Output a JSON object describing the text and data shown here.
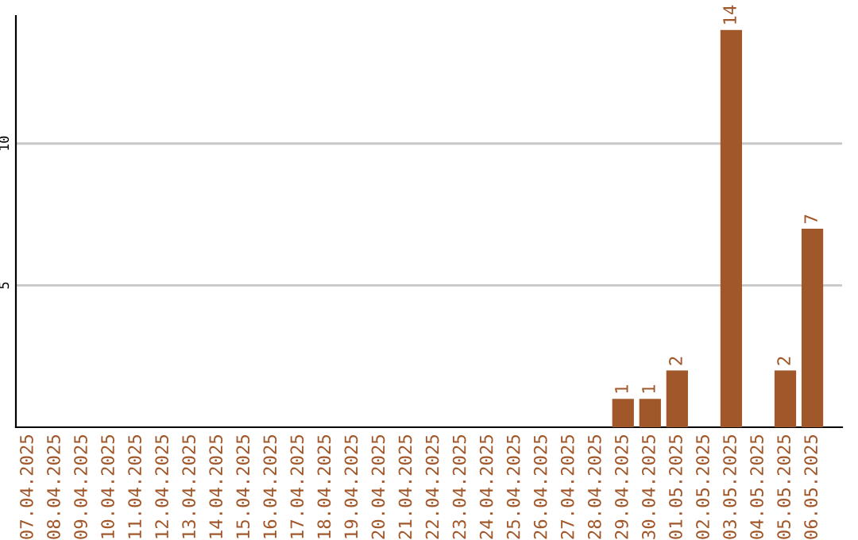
{
  "chart_data": {
    "type": "bar",
    "categories": [
      "07.04.2025",
      "08.04.2025",
      "09.04.2025",
      "10.04.2025",
      "11.04.2025",
      "12.04.2025",
      "13.04.2025",
      "14.04.2025",
      "15.04.2025",
      "16.04.2025",
      "17.04.2025",
      "18.04.2025",
      "19.04.2025",
      "20.04.2025",
      "21.04.2025",
      "22.04.2025",
      "23.04.2025",
      "24.04.2025",
      "25.04.2025",
      "26.04.2025",
      "27.04.2025",
      "28.04.2025",
      "29.04.2025",
      "30.04.2025",
      "01.05.2025",
      "02.05.2025",
      "03.05.2025",
      "04.05.2025",
      "05.05.2025",
      "06.05.2025"
    ],
    "values": [
      0,
      0,
      0,
      0,
      0,
      0,
      0,
      0,
      0,
      0,
      0,
      0,
      0,
      0,
      0,
      0,
      0,
      0,
      0,
      0,
      0,
      0,
      1,
      1,
      2,
      0,
      14,
      0,
      2,
      7
    ],
    "value_labels": [
      null,
      null,
      null,
      null,
      null,
      null,
      null,
      null,
      null,
      null,
      null,
      null,
      null,
      null,
      null,
      null,
      null,
      null,
      null,
      null,
      null,
      null,
      "1",
      "1",
      "2",
      null,
      "14",
      null,
      "2",
      "7"
    ],
    "color": "#a0572a",
    "ylim": [
      0,
      14.5
    ],
    "yticks": [
      5,
      10
    ],
    "grid": "y",
    "legend": false
  }
}
